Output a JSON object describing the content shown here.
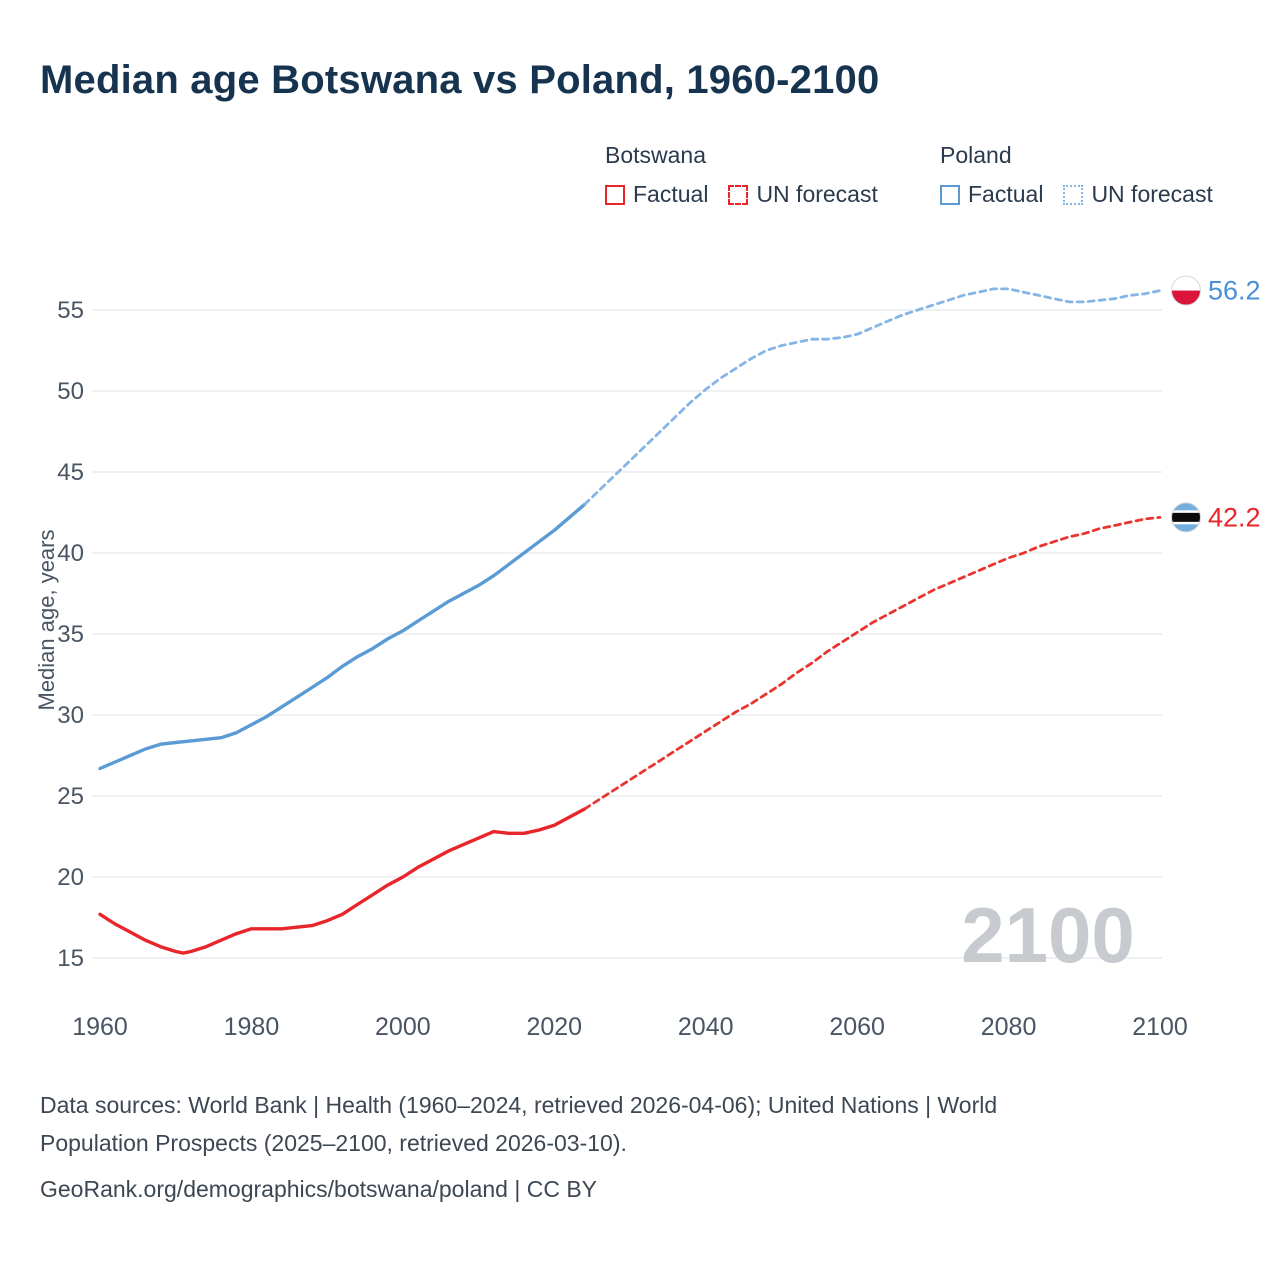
{
  "title": "Median age Botswana vs Poland, 1960-2100",
  "legend": {
    "botswana": {
      "label": "Botswana",
      "factual": "Factual",
      "forecast": "UN forecast"
    },
    "poland": {
      "label": "Poland",
      "factual": "Factual",
      "forecast": "UN forecast"
    }
  },
  "watermark": "2100",
  "end_markers": {
    "poland": {
      "value": 56.2,
      "label": "56.2"
    },
    "botswana": {
      "value": 42.2,
      "label": "42.2"
    }
  },
  "footer": {
    "line1": "Data sources: World Bank | Health (1960–2024, retrieved 2026-04-06); United Nations | World",
    "line2": "Population Prospects (2025–2100, retrieved 2026-03-10).",
    "line3": "GeoRank.org/demographics/botswana/poland | CC BY"
  },
  "colors": {
    "botswana": "#e8252a",
    "botswana_forecast": "#e8352f",
    "poland": "#5b9bd5",
    "poland_forecast": "#85b5e6",
    "poland_label": "#4a90d9",
    "botswana_label": "#e8252a",
    "title": "#16334f",
    "axis_text": "#4a5563",
    "grid": "#e4e7eb",
    "watermark": "#c7cacf",
    "footer": "#3d4754",
    "poland_flag_red": "#dc143c",
    "botswana_flag_blue": "#74aedd"
  },
  "chart_data": {
    "type": "line",
    "title": "Median age Botswana vs Poland, 1960-2100",
    "xlabel": "",
    "ylabel": "Median age, years",
    "xlim": [
      1960,
      2100
    ],
    "ylim": [
      15,
      57
    ],
    "xticks": [
      1960,
      1980,
      2000,
      2020,
      2040,
      2060,
      2080,
      2100
    ],
    "yticks": [
      15,
      20,
      25,
      30,
      35,
      40,
      45,
      50,
      55
    ],
    "grid": "horizontal",
    "legend_position": "top",
    "series": [
      {
        "id": "poland-factual",
        "name": "Poland Factual",
        "style": "solid",
        "color_key": "poland",
        "x": [
          1960,
          1962,
          1964,
          1966,
          1968,
          1970,
          1972,
          1974,
          1976,
          1978,
          1980,
          1982,
          1984,
          1986,
          1988,
          1990,
          1992,
          1994,
          1996,
          1998,
          2000,
          2002,
          2004,
          2006,
          2008,
          2010,
          2012,
          2014,
          2016,
          2018,
          2020,
          2022,
          2024
        ],
        "y": [
          26.7,
          27.1,
          27.5,
          27.9,
          28.2,
          28.3,
          28.4,
          28.5,
          28.6,
          28.9,
          29.4,
          29.9,
          30.5,
          31.1,
          31.7,
          32.3,
          33.0,
          33.6,
          34.1,
          34.7,
          35.2,
          35.8,
          36.4,
          37.0,
          37.5,
          38.0,
          38.6,
          39.3,
          40.0,
          40.7,
          41.4,
          42.2,
          43.0
        ]
      },
      {
        "id": "poland-forecast",
        "name": "Poland UN forecast",
        "style": "dashed",
        "color_key": "poland_forecast",
        "x": [
          2024,
          2026,
          2028,
          2030,
          2032,
          2034,
          2036,
          2038,
          2040,
          2042,
          2044,
          2046,
          2048,
          2050,
          2052,
          2054,
          2056,
          2058,
          2060,
          2062,
          2064,
          2066,
          2068,
          2070,
          2072,
          2074,
          2076,
          2078,
          2080,
          2082,
          2084,
          2086,
          2088,
          2090,
          2092,
          2094,
          2096,
          2098,
          2100
        ],
        "y": [
          43.0,
          43.9,
          44.8,
          45.7,
          46.6,
          47.5,
          48.4,
          49.3,
          50.1,
          50.8,
          51.4,
          52.0,
          52.5,
          52.8,
          53.0,
          53.2,
          53.2,
          53.3,
          53.5,
          53.9,
          54.3,
          54.7,
          55.0,
          55.3,
          55.6,
          55.9,
          56.1,
          56.3,
          56.3,
          56.1,
          55.9,
          55.7,
          55.5,
          55.5,
          55.6,
          55.7,
          55.9,
          56.0,
          56.2
        ]
      },
      {
        "id": "botswana-factual",
        "name": "Botswana Factual",
        "style": "solid",
        "color_key": "botswana",
        "x": [
          1960,
          1962,
          1964,
          1966,
          1968,
          1970,
          1971,
          1972,
          1974,
          1976,
          1978,
          1980,
          1982,
          1984,
          1986,
          1988,
          1990,
          1992,
          1994,
          1996,
          1998,
          2000,
          2002,
          2004,
          2006,
          2008,
          2010,
          2012,
          2014,
          2016,
          2018,
          2020,
          2022,
          2024
        ],
        "y": [
          17.7,
          17.1,
          16.6,
          16.1,
          15.7,
          15.4,
          15.3,
          15.4,
          15.7,
          16.1,
          16.5,
          16.8,
          16.8,
          16.8,
          16.9,
          17.0,
          17.3,
          17.7,
          18.3,
          18.9,
          19.5,
          20.0,
          20.6,
          21.1,
          21.6,
          22.0,
          22.4,
          22.8,
          22.7,
          22.7,
          22.9,
          23.2,
          23.7,
          24.2
        ]
      },
      {
        "id": "botswana-forecast",
        "name": "Botswana UN forecast",
        "style": "dashed",
        "color_key": "botswana_forecast",
        "x": [
          2024,
          2026,
          2028,
          2030,
          2032,
          2034,
          2036,
          2038,
          2040,
          2042,
          2044,
          2046,
          2048,
          2050,
          2052,
          2054,
          2056,
          2058,
          2060,
          2062,
          2064,
          2066,
          2068,
          2070,
          2072,
          2074,
          2076,
          2078,
          2080,
          2082,
          2084,
          2086,
          2088,
          2090,
          2092,
          2094,
          2096,
          2098,
          2100
        ],
        "y": [
          24.2,
          24.8,
          25.4,
          26.0,
          26.6,
          27.2,
          27.8,
          28.4,
          29.0,
          29.6,
          30.2,
          30.7,
          31.3,
          31.9,
          32.6,
          33.2,
          33.9,
          34.5,
          35.1,
          35.7,
          36.2,
          36.7,
          37.2,
          37.7,
          38.1,
          38.5,
          38.9,
          39.3,
          39.7,
          40.0,
          40.4,
          40.7,
          41.0,
          41.2,
          41.5,
          41.7,
          41.9,
          42.1,
          42.2
        ]
      }
    ]
  }
}
